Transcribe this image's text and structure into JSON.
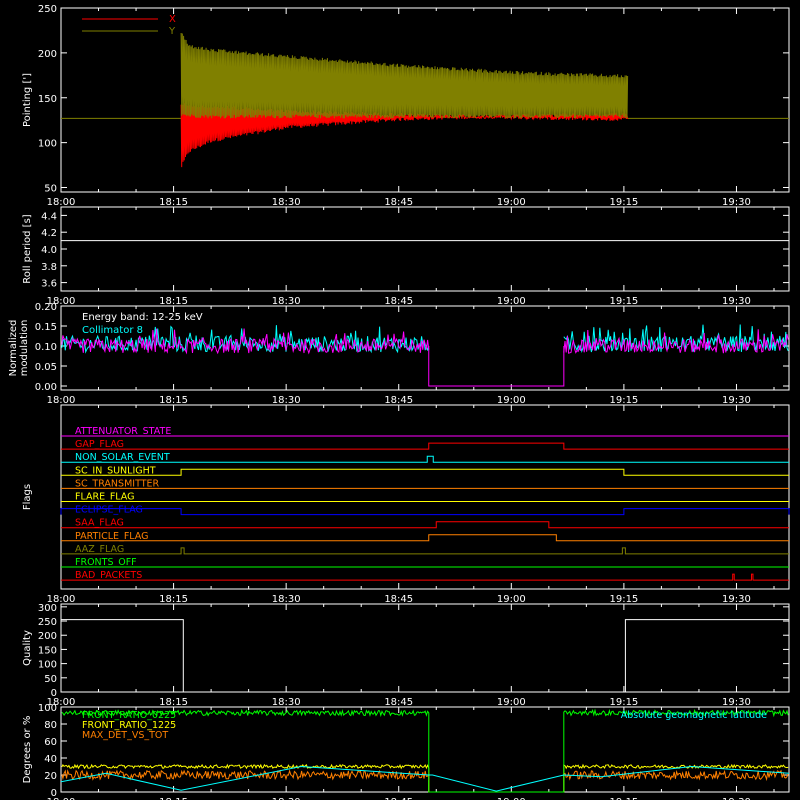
{
  "time_axis": {
    "ticks": [
      "18:00",
      "18:15",
      "18:30",
      "18:45",
      "19:00",
      "19:15",
      "19:30"
    ],
    "tick_minutes": [
      0,
      15,
      30,
      45,
      60,
      75,
      90
    ],
    "range_minutes": [
      0,
      97
    ]
  },
  "colors": {
    "background": "#000000",
    "axes": "#ffffff",
    "red": "#ff0000",
    "olive": "#808000",
    "magenta": "#ff00ff",
    "cyan": "#00ffff",
    "yellow": "#ffff00",
    "orange": "#ff8000",
    "blue": "#0000ff",
    "green": "#00ff00",
    "white": "#ffffff"
  },
  "chart_data": [
    {
      "type": "line",
      "ylabel": "Pointing [']",
      "ylim": [
        45,
        250
      ],
      "yticks": [
        "50",
        "100",
        "150",
        "200",
        "250"
      ],
      "ytick_values": [
        50,
        100,
        150,
        200,
        250
      ],
      "legend_position": "top-left",
      "baseline": 127,
      "active_range_minutes": [
        16,
        75.5
      ],
      "series": [
        {
          "name": "X",
          "color": "#ff0000",
          "envelope_minutes": [
            16,
            17,
            20,
            30,
            45,
            60,
            75
          ],
          "envelope_low": [
            70,
            88,
            100,
            115,
            124,
            128,
            130
          ],
          "envelope_high": [
            145,
            144,
            142,
            137,
            133,
            130,
            128
          ]
        },
        {
          "name": "Y",
          "color": "#808000",
          "envelope_minutes": [
            16,
            17,
            20,
            30,
            45,
            60,
            75
          ],
          "envelope_low": [
            130,
            128,
            127,
            127,
            127,
            127,
            127
          ],
          "envelope_high": [
            225,
            210,
            205,
            198,
            188,
            180,
            176
          ]
        }
      ]
    },
    {
      "type": "line",
      "ylabel": "Roll period [s]",
      "ylim": [
        3.5,
        4.5
      ],
      "yticks": [
        "3.6",
        "3.8",
        "4.0",
        "4.2",
        "4.4"
      ],
      "ytick_values": [
        3.6,
        3.8,
        4.0,
        4.2,
        4.4
      ],
      "series": [
        {
          "name": "",
          "color": "#ffffff",
          "x": [
            0,
            97
          ],
          "y": [
            4.1,
            4.1
          ]
        }
      ]
    },
    {
      "type": "line",
      "ylabel": "Normalized modulation",
      "ylim": [
        -0.01,
        0.2
      ],
      "yticks": [
        "0.00",
        "0.05",
        "0.10",
        "0.15",
        "0.20"
      ],
      "ytick_values": [
        0,
        0.05,
        0.1,
        0.15,
        0.2
      ],
      "annotation": "Energy band: 12-25 keV",
      "gap_minutes": [
        49,
        67
      ],
      "series": [
        {
          "name": "Collimator 8",
          "color": "#00ffff",
          "mean": 0.105,
          "spread": 0.02
        },
        {
          "name": "",
          "color": "#ff00ff",
          "mean": 0.1,
          "spread": 0.018
        }
      ]
    },
    {
      "type": "line",
      "ylabel": "Flags",
      "flags": [
        {
          "name": "ATTENUATOR_STATE",
          "color": "#ff00ff",
          "on": []
        },
        {
          "name": "GAP_FLAG",
          "color": "#ff0000",
          "on": [
            [
              49,
              67
            ]
          ]
        },
        {
          "name": "NON_SOLAR_EVENT",
          "color": "#00ffff",
          "on": [
            [
              48.8,
              49.6
            ]
          ]
        },
        {
          "name": "SC_IN_SUNLIGHT",
          "color": "#ffff00",
          "on": [
            [
              16,
              75
            ]
          ]
        },
        {
          "name": "SC_TRANSMITTER",
          "color": "#ff8000",
          "on": []
        },
        {
          "name": "FLARE_FLAG",
          "color": "#ffff00",
          "on": []
        },
        {
          "name": "ECLIPSE_FLAG",
          "color": "#0000ff",
          "on": [
            [
              0,
              16
            ],
            [
              75,
              97
            ]
          ]
        },
        {
          "name": "SAA_FLAG",
          "color": "#ff0000",
          "on": [
            [
              50,
              65
            ]
          ]
        },
        {
          "name": "PARTICLE_FLAG",
          "color": "#ff8000",
          "on": [
            [
              49,
              66
            ]
          ]
        },
        {
          "name": "AAZ_FLAG",
          "color": "#808000",
          "on": [
            [
              16,
              16.4
            ],
            [
              74.8,
              75.2
            ]
          ]
        },
        {
          "name": "FRONTS_OFF",
          "color": "#00ff00",
          "on": []
        },
        {
          "name": "BAD_PACKETS",
          "color": "#ff0000",
          "on": [
            [
              89.5,
              89.7
            ],
            [
              92,
              92.2
            ]
          ]
        }
      ]
    },
    {
      "type": "line",
      "ylabel": "Quality",
      "ylim": [
        0,
        310
      ],
      "yticks": [
        "0",
        "50",
        "100",
        "150",
        "200",
        "250",
        "300"
      ],
      "ytick_values": [
        0,
        50,
        100,
        150,
        200,
        250,
        300
      ],
      "series": [
        {
          "name": "",
          "color": "#ffffff",
          "x": [
            0,
            16.3,
            16.3,
            75.2,
            75.2,
            97
          ],
          "y": [
            255,
            255,
            0,
            0,
            255,
            255
          ]
        }
      ]
    },
    {
      "type": "line",
      "ylabel": "Degrees or %",
      "ylim": [
        0,
        100
      ],
      "yticks": [
        "0",
        "20",
        "40",
        "60",
        "80",
        "100"
      ],
      "ytick_values": [
        0,
        20,
        40,
        60,
        80,
        100
      ],
      "gap_minutes": [
        49,
        67
      ],
      "series": [
        {
          "name": "FRONT_RATIO_0225",
          "color": "#00ff00",
          "mean": 93,
          "spread": 3
        },
        {
          "name": "FRONT_RATIO_1225",
          "color": "#ffff00",
          "mean": 30,
          "spread": 2
        },
        {
          "name": "MAX_DET_VS_TOT",
          "color": "#ff8000",
          "mean": 20,
          "spread": 5
        },
        {
          "name": "Absolute geomagnetic latitude",
          "color": "#00ffff",
          "x": [
            0,
            6,
            16,
            32,
            49,
            49.5,
            58,
            67,
            72,
            84,
            97
          ],
          "y": [
            12,
            22,
            2,
            30,
            20,
            20,
            1,
            20,
            18,
            30,
            22
          ]
        }
      ]
    }
  ]
}
